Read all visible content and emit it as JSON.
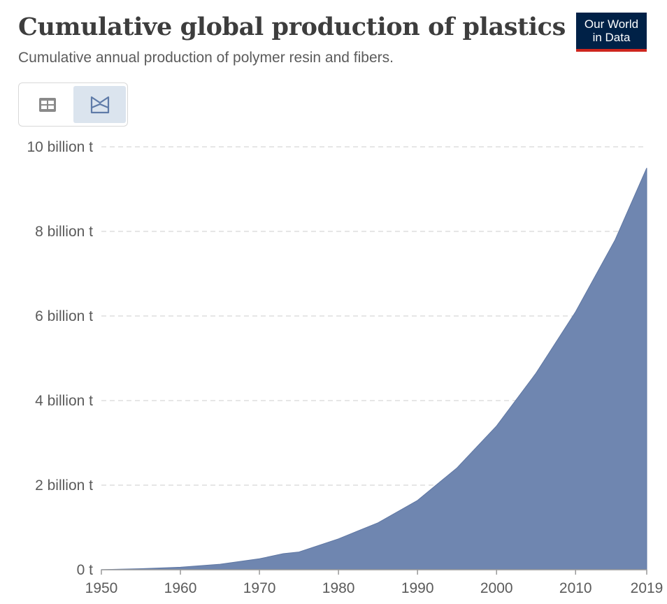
{
  "header": {
    "title": "Cumulative global production of plastics",
    "subtitle": "Cumulative annual production of polymer resin and fibers."
  },
  "logo": {
    "line1": "Our World",
    "line2": "in Data"
  },
  "view_toggle": {
    "table_icon": "table-icon",
    "chart_icon": "area-chart-icon",
    "selected": "chart"
  },
  "colors": {
    "area": "#6f86b0",
    "accent_logo": "#002147",
    "logo_underline": "#ce261e"
  },
  "chart_data": {
    "type": "area",
    "title": "Cumulative global production of plastics",
    "subtitle": "Cumulative annual production of polymer resin and fibers.",
    "xlim": [
      1950,
      2019
    ],
    "ylim": [
      0,
      10000000000
    ],
    "x_ticks": [
      1950,
      1960,
      1970,
      1980,
      1990,
      2000,
      2010,
      2019
    ],
    "x_tick_labels": [
      "1950",
      "1960",
      "1970",
      "1980",
      "1990",
      "2000",
      "2010",
      "2019"
    ],
    "y_ticks": [
      0,
      2000000000,
      4000000000,
      6000000000,
      8000000000,
      10000000000
    ],
    "y_tick_labels": [
      "0 t",
      "2 billion t",
      "4 billion t",
      "6 billion t",
      "8 billion t",
      "10 billion t"
    ],
    "grid": "horizontal dashed",
    "series": [
      {
        "x": [
          1950,
          1955,
          1960,
          1965,
          1970,
          1973,
          1975,
          1980,
          1985,
          1990,
          1995,
          2000,
          2005,
          2010,
          2015,
          2019
        ],
        "values": [
          2000000,
          25000000,
          60000000,
          130000000,
          260000000,
          380000000,
          420000000,
          730000000,
          1110000000,
          1640000000,
          2410000000,
          3400000000,
          4650000000,
          6100000000,
          7800000000,
          9500000000
        ]
      }
    ]
  }
}
